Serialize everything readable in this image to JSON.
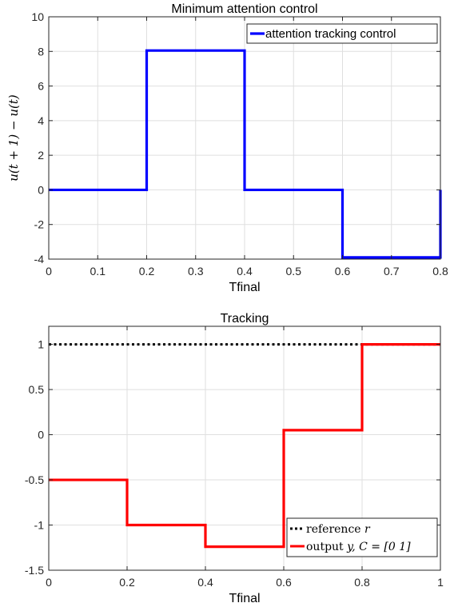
{
  "chart_data": [
    {
      "type": "line",
      "step": true,
      "title": "Minimum attention control",
      "xlabel": "Tfinal",
      "ylabel": "u(t + 1) − u(t)",
      "xlim": [
        0,
        0.8
      ],
      "ylim": [
        -4,
        10
      ],
      "xticks": [
        0,
        0.1,
        0.2,
        0.3,
        0.4,
        0.5,
        0.6,
        0.7,
        0.8
      ],
      "xtick_labels": [
        "0",
        "0.1",
        "0.2",
        "0.3",
        "0.4",
        "0.5",
        "0.6",
        "0.7",
        "0.8"
      ],
      "yticks": [
        -4,
        -2,
        0,
        2,
        4,
        6,
        8,
        10
      ],
      "ytick_labels": [
        "-4",
        "-2",
        "0",
        "2",
        "4",
        "6",
        "8",
        "10"
      ],
      "grid": true,
      "legend_position": "top-right",
      "series": [
        {
          "name": "attention tracking control",
          "color": "#0000ff",
          "style": "solid",
          "x": [
            0,
            0.2,
            0.2,
            0.4,
            0.4,
            0.6,
            0.6,
            0.8,
            0.8
          ],
          "y": [
            0,
            0,
            8.05,
            8.05,
            0,
            0,
            -3.9,
            -3.9,
            0
          ]
        }
      ]
    },
    {
      "type": "line",
      "step": true,
      "title": "Tracking",
      "xlabel": "Tfinal",
      "ylabel": "",
      "xlim": [
        0,
        1
      ],
      "ylim": [
        -1.5,
        1.2
      ],
      "xticks": [
        0,
        0.2,
        0.4,
        0.6,
        0.8,
        1
      ],
      "xtick_labels": [
        "0",
        "0.2",
        "0.4",
        "0.6",
        "0.8",
        "1"
      ],
      "yticks": [
        -1.5,
        -1,
        -0.5,
        0,
        0.5,
        1
      ],
      "ytick_labels": [
        "-1.5",
        "-1",
        "-0.5",
        "0",
        "0.5",
        "1"
      ],
      "grid": true,
      "legend_position": "bottom-right",
      "series": [
        {
          "name": "reference r",
          "name_prefix": "reference ",
          "name_math": "r",
          "color": "#000000",
          "style": "dotted",
          "x": [
            0,
            1
          ],
          "y": [
            1,
            1
          ]
        },
        {
          "name": "output y, C = [0 1]",
          "name_prefix": "output ",
          "name_math": "y, C = [0 1]",
          "color": "#ff0000",
          "style": "solid",
          "x": [
            0,
            0.2,
            0.2,
            0.4,
            0.4,
            0.6,
            0.6,
            0.8,
            0.8,
            1
          ],
          "y": [
            -0.5,
            -0.5,
            -1.0,
            -1.0,
            -1.24,
            -1.24,
            0.05,
            0.05,
            1.0,
            1.0
          ]
        }
      ]
    }
  ]
}
